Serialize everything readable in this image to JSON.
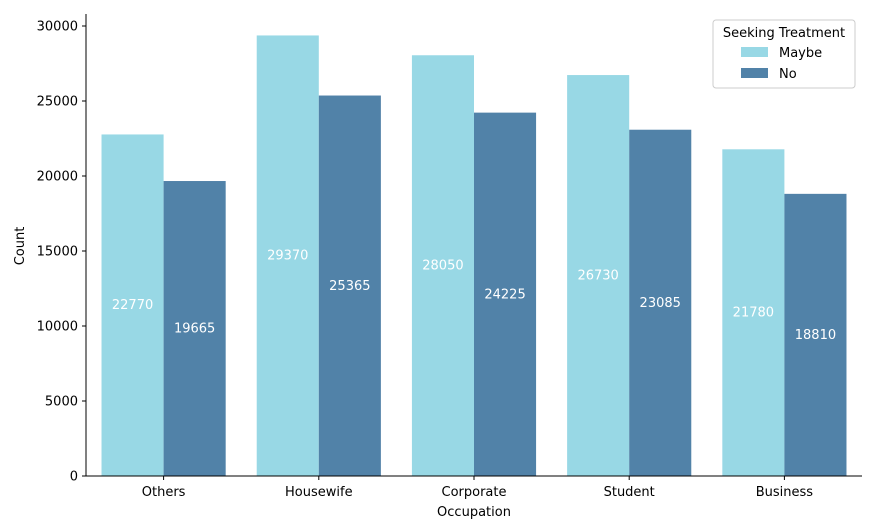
{
  "chart_data": {
    "type": "bar",
    "xlabel": "Occupation",
    "ylabel": "Count",
    "categories": [
      "Others",
      "Housewife",
      "Corporate",
      "Student",
      "Business"
    ],
    "series": [
      {
        "name": "Maybe",
        "color": "#98d8e5",
        "values": [
          22770,
          29370,
          28050,
          26730,
          21780
        ]
      },
      {
        "name": "No",
        "color": "#5182a8",
        "values": [
          19665,
          25365,
          24225,
          23085,
          18810
        ]
      }
    ],
    "ylim": [
      0,
      30800
    ],
    "yticks": [
      0,
      5000,
      10000,
      15000,
      20000,
      25000,
      30000
    ],
    "legend_title": "Seeking Treatment",
    "legend_position": "top-right",
    "grid": false,
    "data_labels": true
  }
}
